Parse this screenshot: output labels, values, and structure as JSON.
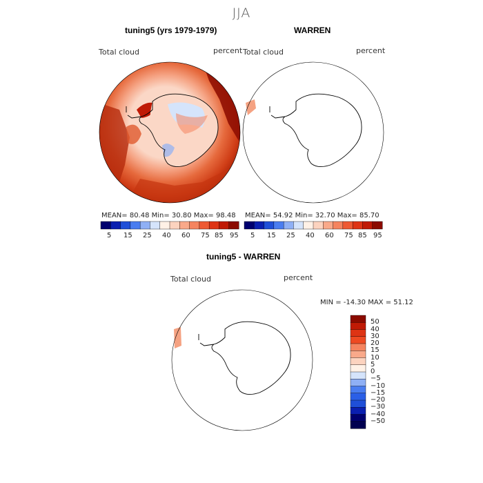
{
  "season": "JJA",
  "panels": {
    "model": {
      "title": "tuning5 (yrs 1979-1979)",
      "variable": "Total cloud",
      "units": "percent",
      "stats": {
        "mean": "80.48",
        "min": "30.80",
        "max": "98.48"
      },
      "stats_text": "MEAN=   80.48   Min=   30.80   Max=   98.48"
    },
    "obs": {
      "title": "WARREN",
      "variable": "Total cloud",
      "units": "percent",
      "stats": {
        "mean": "54.92",
        "min": "32.70",
        "max": "85.70"
      },
      "stats_text": "MEAN=   54.92   Min=   32.70   Max=   85.70"
    },
    "diff": {
      "title": "tuning5 - WARREN",
      "variable": "Total cloud",
      "units": "percent",
      "stats": {
        "min": "-14.30",
        "max": "51.12"
      },
      "stats_text": "MIN = -14.30 MAX =  51.12"
    }
  },
  "abs_colorbar": {
    "tick_labels": [
      "5",
      "15",
      "25",
      "40",
      "60",
      "75",
      "85",
      "95"
    ],
    "colors": [
      "#00006e",
      "#0a1fb0",
      "#1f4fd8",
      "#4a7df0",
      "#8fb0f5",
      "#d5e4fb",
      "#fff1e6",
      "#fcd3bf",
      "#f9a98a",
      "#f5845f",
      "#ee5a33",
      "#de3414",
      "#c01a05",
      "#8b0b00"
    ]
  },
  "diff_colorbar": {
    "tick_labels": [
      "50",
      "40",
      "30",
      "20",
      "15",
      "10",
      "5",
      "0",
      "−5",
      "−10",
      "−15",
      "−20",
      "−30",
      "−40",
      "−50"
    ],
    "colors": [
      "#8b0b00",
      "#c01a05",
      "#de3414",
      "#ee4a22",
      "#f5845f",
      "#f9a98a",
      "#fcd3bf",
      "#fff1e6",
      "#d5e4fb",
      "#8fb0f5",
      "#4a7df0",
      "#2b5fe6",
      "#1f4fd8",
      "#0a1fb0",
      "#00006e",
      "#000050"
    ]
  },
  "colors": {
    "land_outline": "#000000",
    "map_border": "#000000",
    "dark_red": "#b52a0c",
    "mid_red": "#e05a2e",
    "light_red": "#f5a282",
    "pale": "#fbd7c6",
    "pale_blue": "#d5e4fb"
  }
}
